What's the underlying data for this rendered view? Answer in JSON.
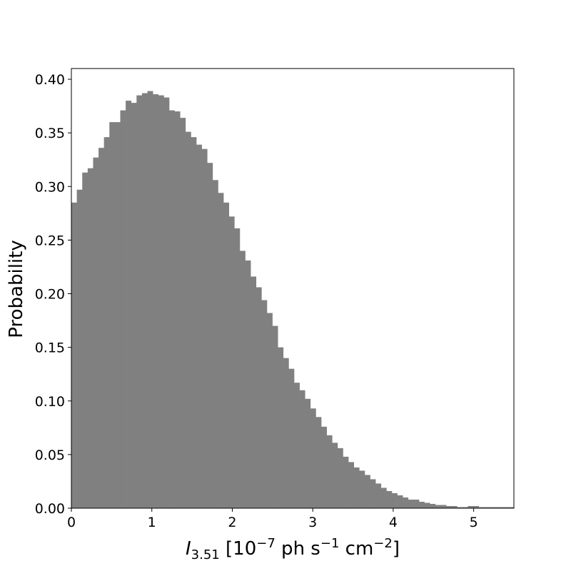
{
  "chart_data": {
    "type": "bar",
    "bar_color": "#808080",
    "xlabel": {
      "var": "I",
      "sub": "3.51",
      "unit_open": " [10",
      "unit_exp1": "−7",
      "unit_mid": "  ph  s",
      "unit_exp2": "−1",
      "unit_mid2": "  cm",
      "unit_exp3": "−2",
      "unit_close": "]"
    },
    "ylabel": "Probability",
    "xlim": [
      0,
      5.5
    ],
    "ylim": [
      0,
      0.41
    ],
    "bin_width": 0.0675,
    "xticks": [
      {
        "value": 0,
        "label": "0"
      },
      {
        "value": 1,
        "label": "1"
      },
      {
        "value": 2,
        "label": "2"
      },
      {
        "value": 3,
        "label": "3"
      },
      {
        "value": 4,
        "label": "4"
      },
      {
        "value": 5,
        "label": "5"
      }
    ],
    "yticks": [
      {
        "value": 0.0,
        "label": "0.00"
      },
      {
        "value": 0.05,
        "label": "0.05"
      },
      {
        "value": 0.1,
        "label": "0.10"
      },
      {
        "value": 0.15,
        "label": "0.15"
      },
      {
        "value": 0.2,
        "label": "0.20"
      },
      {
        "value": 0.25,
        "label": "0.25"
      },
      {
        "value": 0.3,
        "label": "0.30"
      },
      {
        "value": 0.35,
        "label": "0.35"
      },
      {
        "value": 0.4,
        "label": "0.40"
      }
    ],
    "values": [
      0.285,
      0.297,
      0.313,
      0.317,
      0.327,
      0.336,
      0.346,
      0.36,
      0.36,
      0.371,
      0.38,
      0.378,
      0.385,
      0.387,
      0.389,
      0.386,
      0.385,
      0.383,
      0.371,
      0.37,
      0.364,
      0.351,
      0.346,
      0.339,
      0.335,
      0.322,
      0.306,
      0.294,
      0.285,
      0.272,
      0.261,
      0.24,
      0.231,
      0.216,
      0.206,
      0.194,
      0.182,
      0.17,
      0.15,
      0.14,
      0.13,
      0.117,
      0.11,
      0.102,
      0.093,
      0.085,
      0.076,
      0.068,
      0.061,
      0.056,
      0.048,
      0.043,
      0.038,
      0.035,
      0.031,
      0.027,
      0.023,
      0.019,
      0.016,
      0.014,
      0.012,
      0.01,
      0.008,
      0.008,
      0.006,
      0.005,
      0.004,
      0.003,
      0.003,
      0.002,
      0.002,
      0.001,
      0.001,
      0.002,
      0.002,
      0.001,
      0.001,
      0.001,
      0.001,
      0.001,
      0.001,
      0.001
    ]
  }
}
